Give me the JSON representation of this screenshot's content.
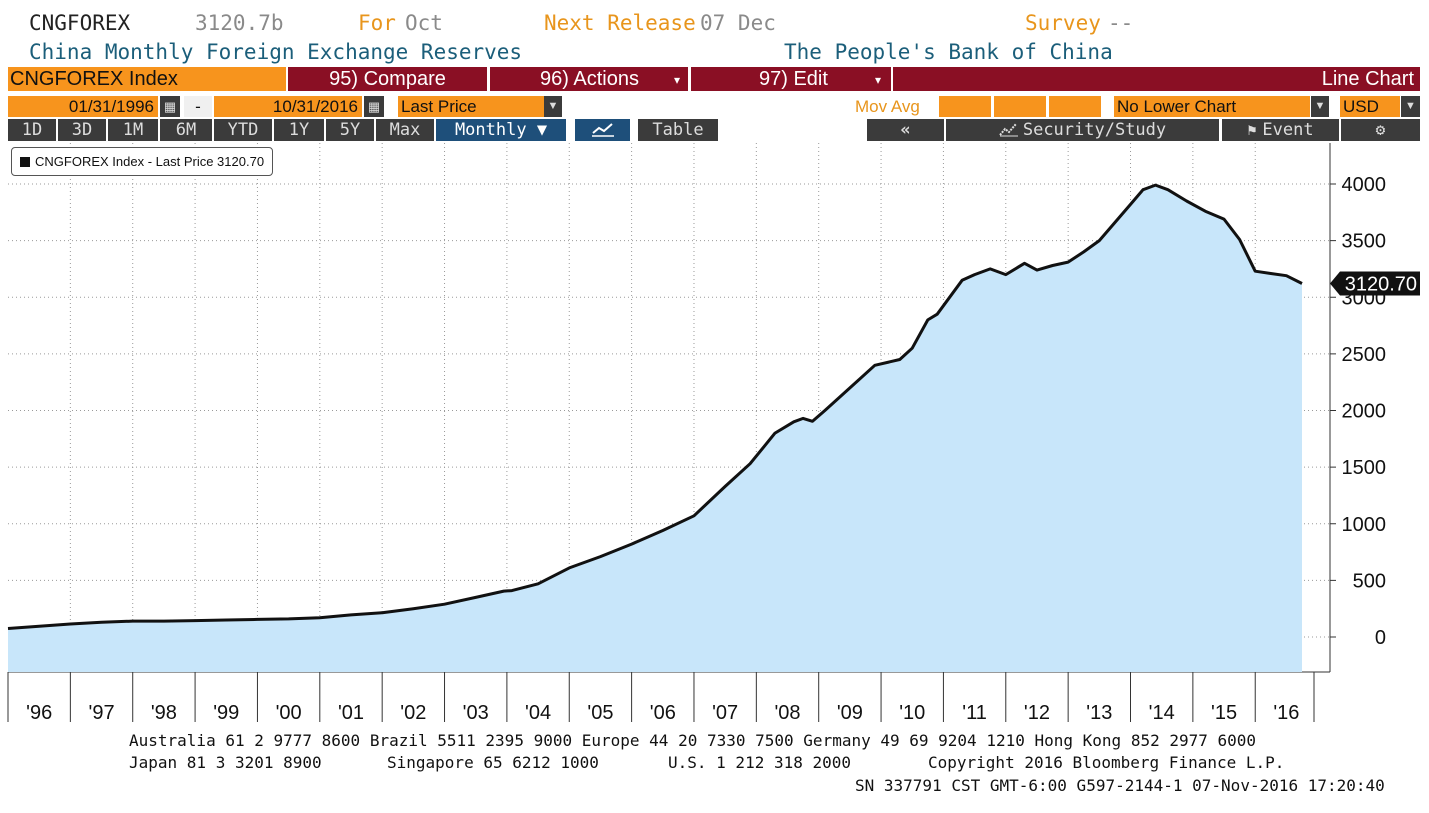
{
  "header": {
    "ticker": "CNGFOREX",
    "value": "3120.7b",
    "for_label": "For",
    "for_value": "Oct",
    "next_label": "Next Release",
    "next_value": "07 Dec",
    "survey_label": "Survey",
    "survey_value": "--",
    "description": "China Monthly Foreign Exchange Reserves",
    "source": "The People's Bank of China"
  },
  "toolbar": {
    "index_label": "CNGFOREX Index",
    "compare": "95) Compare",
    "actions": "96) Actions",
    "edit": "97) Edit",
    "chart_type": "Line Chart",
    "start_date": "01/31/1996",
    "date_sep": "-",
    "end_date": "10/31/2016",
    "price_field": "Last Price",
    "mov_avg": "Mov Avg",
    "lower_chart": "No Lower Chart",
    "currency": "USD",
    "ranges": [
      "1D",
      "3D",
      "1M",
      "6M",
      "YTD",
      "1Y",
      "5Y",
      "Max"
    ],
    "period": "Monthly ▼",
    "table": "Table",
    "collapse": "«",
    "security_study": "Security/Study",
    "event": "Event",
    "settings_icon": "gear-icon"
  },
  "legend": {
    "text": "CNGFOREX Index - Last Price 3120.70"
  },
  "chart_data": {
    "type": "area",
    "title": "",
    "xlabel": "",
    "ylabel": "",
    "x_tick_labels": [
      "'96",
      "'97",
      "'98",
      "'99",
      "'00",
      "'01",
      "'02",
      "'03",
      "'04",
      "'05",
      "'06",
      "'07",
      "'08",
      "'09",
      "'10",
      "'11",
      "'12",
      "'13",
      "'14",
      "'15",
      "'16"
    ],
    "y_tick_labels": [
      "0",
      "500",
      "1000",
      "1500",
      "2000",
      "2500",
      "3000",
      "3500",
      "4000"
    ],
    "ylim": [
      -300,
      4400
    ],
    "xlim": [
      1996.0,
      2016.75
    ],
    "grid": true,
    "y_axis_side": "right",
    "last_value_label": "3120.70",
    "line_color": "#111111",
    "fill_color": "#c8e6fa",
    "series": [
      {
        "name": "CNGFOREX Index - Last Price",
        "x": [
          1996.0,
          1996.5,
          1997.0,
          1997.5,
          1998.0,
          1998.5,
          1999.0,
          1999.5,
          2000.0,
          2000.5,
          2001.0,
          2001.5,
          2002.0,
          2002.5,
          2003.0,
          2003.5,
          2003.95,
          2004.08,
          2004.5,
          2005.0,
          2005.5,
          2006.0,
          2006.5,
          2007.0,
          2007.5,
          2007.9,
          2008.3,
          2008.6,
          2008.75,
          2008.9,
          2009.1,
          2009.5,
          2009.9,
          2010.3,
          2010.5,
          2010.75,
          2010.9,
          2011.3,
          2011.5,
          2011.75,
          2012.0,
          2012.3,
          2012.5,
          2012.75,
          2013.0,
          2013.25,
          2013.5,
          2013.75,
          2014.0,
          2014.2,
          2014.4,
          2014.6,
          2014.9,
          2015.2,
          2015.5,
          2015.75,
          2016.0,
          2016.25,
          2016.5,
          2016.75
        ],
        "values": [
          75,
          95,
          115,
          130,
          140,
          140,
          145,
          150,
          155,
          160,
          170,
          195,
          215,
          250,
          290,
          350,
          405,
          410,
          470,
          610,
          710,
          820,
          940,
          1070,
          1330,
          1530,
          1800,
          1900,
          1930,
          1905,
          2000,
          2200,
          2399,
          2450,
          2550,
          2800,
          2850,
          3150,
          3200,
          3250,
          3200,
          3300,
          3240,
          3280,
          3310,
          3400,
          3500,
          3660,
          3820,
          3950,
          3990,
          3950,
          3850,
          3760,
          3690,
          3510,
          3230,
          3210,
          3190,
          3121
        ]
      }
    ]
  },
  "footer": {
    "line1": "Australia 61 2 9777 8600 Brazil 5511 2395 9000 Europe 44 20 7330 7500 Germany 49 69 9204 1210 Hong Kong 852 2977 6000",
    "line2a": "Japan 81 3 3201 8900",
    "line2b": "Singapore 65 6212 1000",
    "line2c": "U.S. 1 212 318 2000",
    "line2d": "Copyright 2016 Bloomberg Finance L.P.",
    "line3": "SN 337791 CST  GMT-6:00 G597-2144-1 07-Nov-2016 17:20:40"
  }
}
